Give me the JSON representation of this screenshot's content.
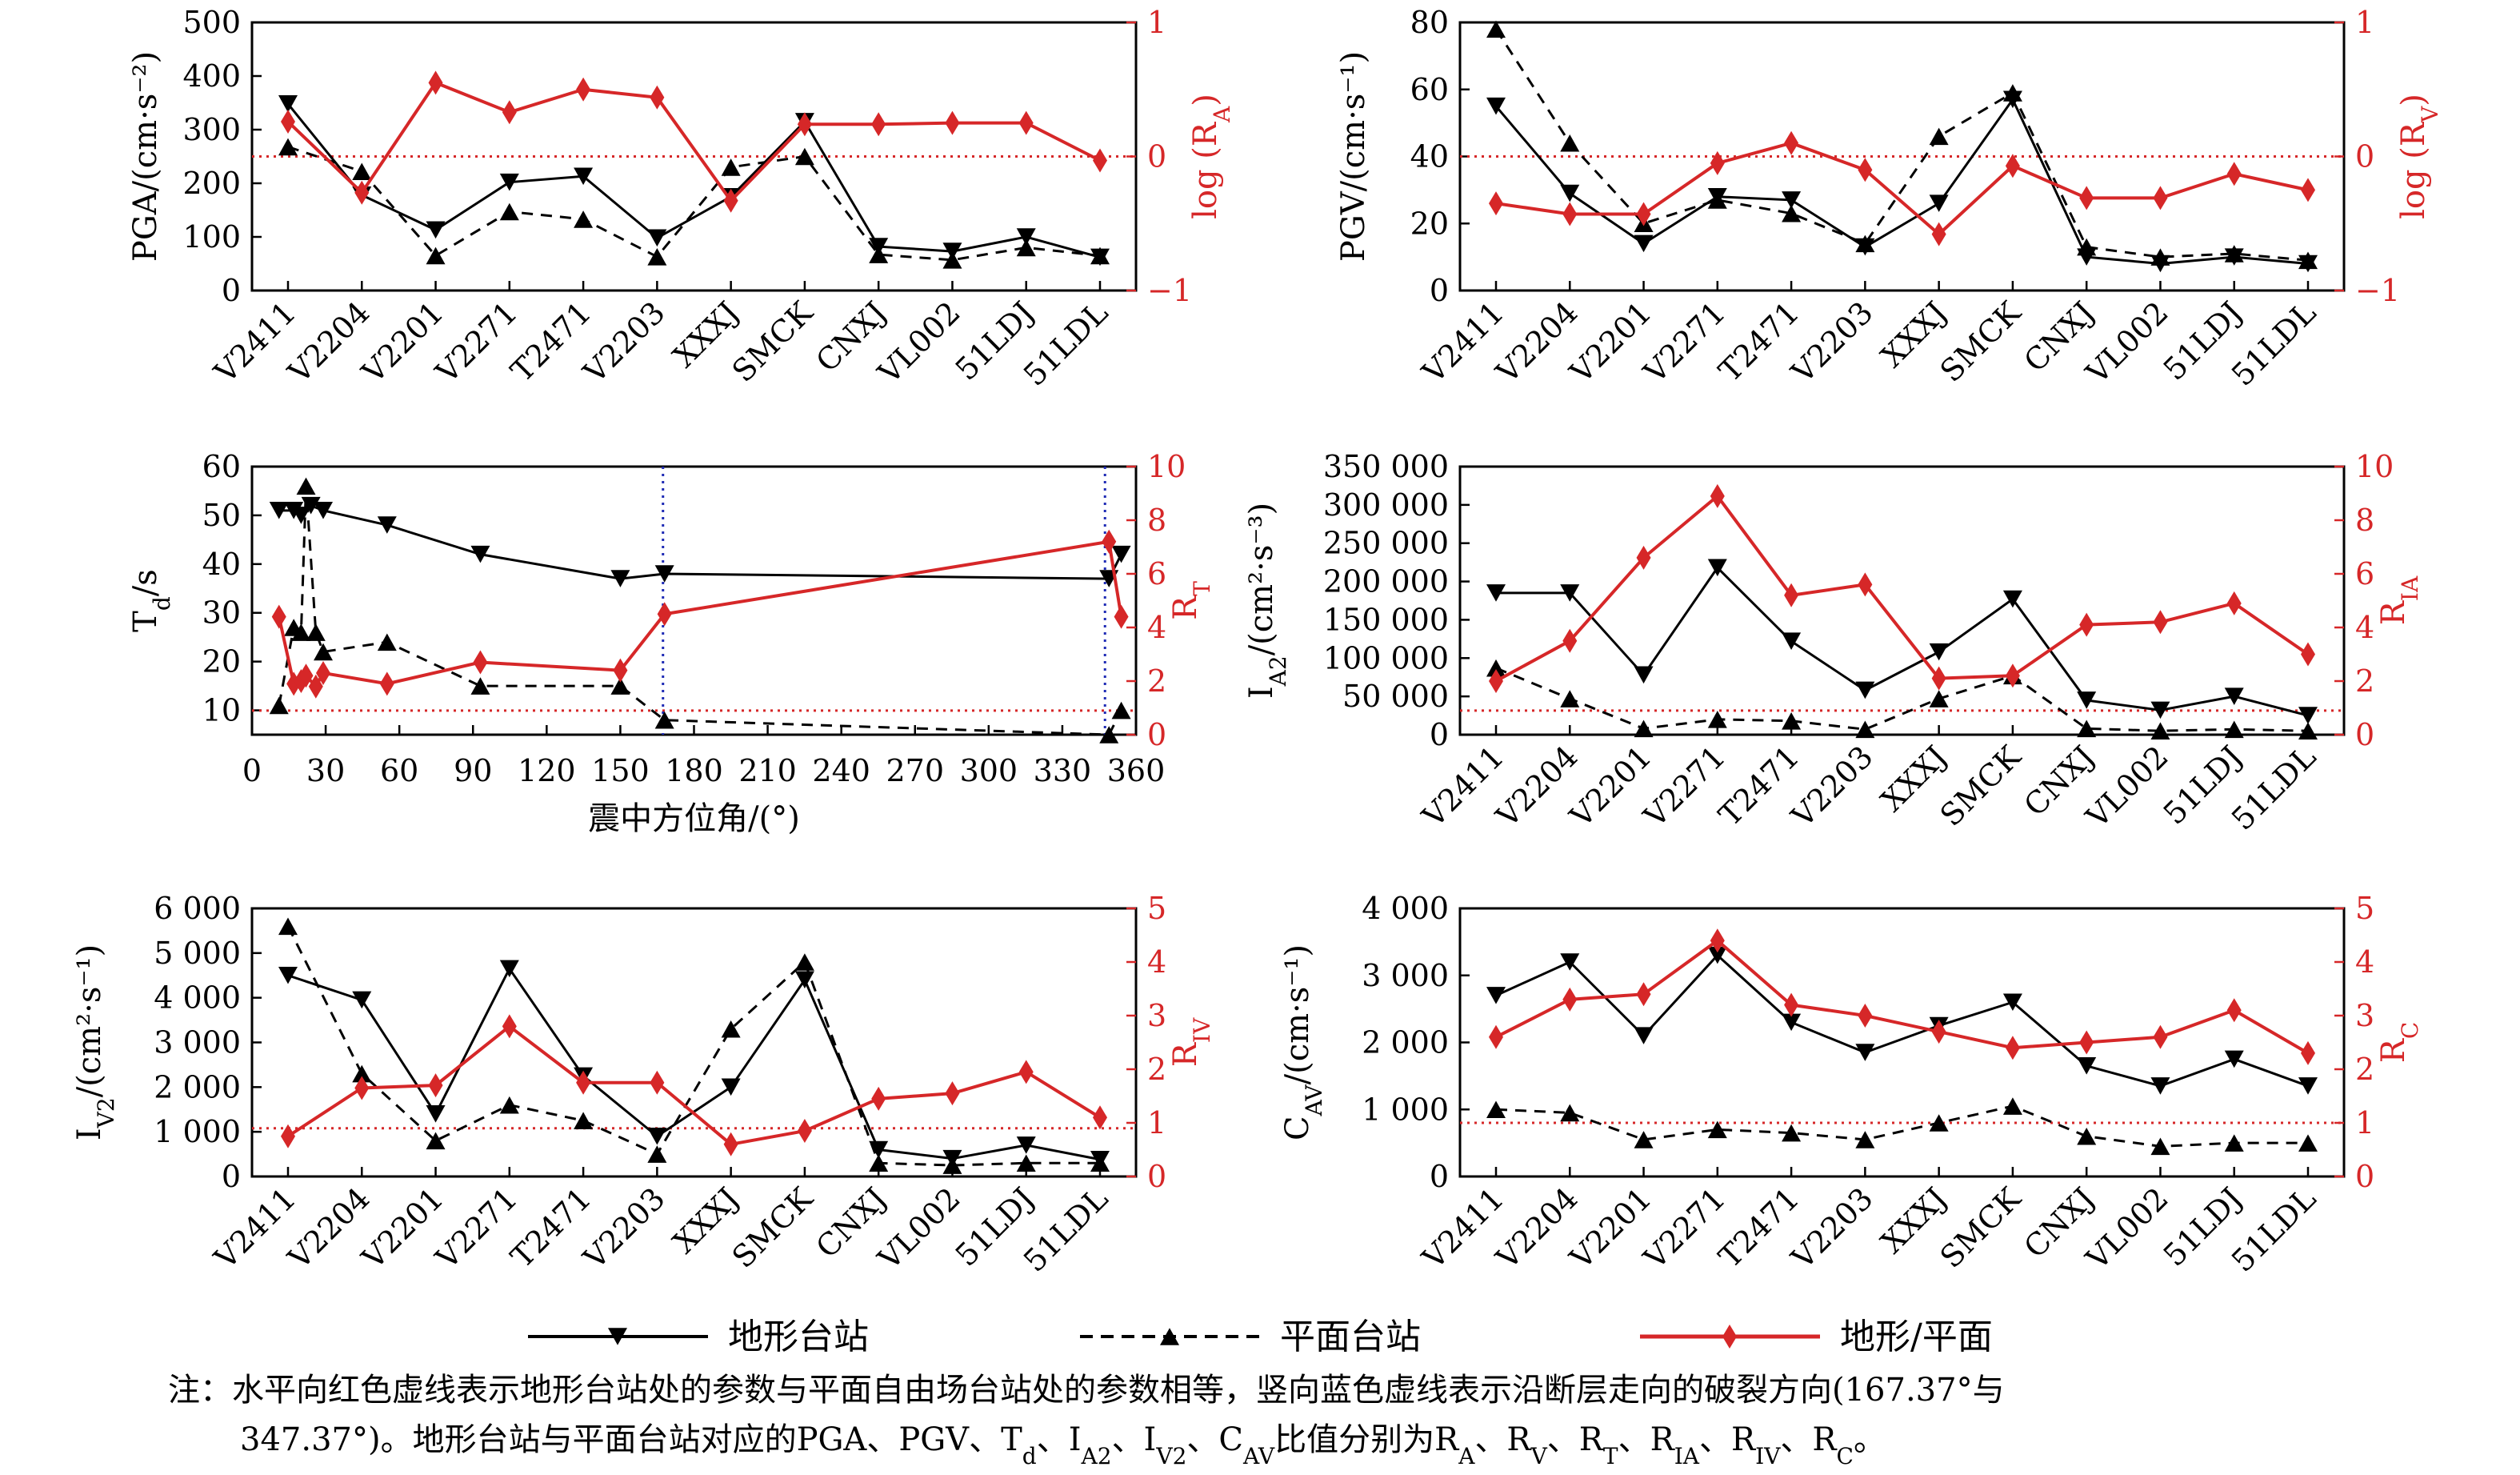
{
  "stations": [
    "V2411",
    "V2204",
    "V2201",
    "V2271",
    "T2471",
    "V2203",
    "XXXJ",
    "SMCK",
    "CNXJ",
    "VL002",
    "51LDJ",
    "51LDL"
  ],
  "colors": {
    "terrain": "#000000",
    "flat": "#000000",
    "ratio": "#d62728",
    "ref_red": "#d62728",
    "ref_blue": "#1f2bb5"
  },
  "chart_data": [
    {
      "id": "pga",
      "type": "line",
      "ylabel": "PGA/(cm·s⁻²)",
      "ylim": [
        0,
        500
      ],
      "yticks": [
        "0",
        "100",
        "200",
        "300",
        "400",
        "500"
      ],
      "y2label": "log (R_A)",
      "y2lim": [
        -1,
        1
      ],
      "y2ticks": [
        "−1",
        "0",
        "1"
      ],
      "ref_y2": 0,
      "series": [
        {
          "name": "地形台站",
          "axis": "left",
          "values": [
            348,
            178,
            113,
            202,
            213,
            98,
            175,
            315,
            82,
            73,
            100,
            62
          ]
        },
        {
          "name": "平面台站",
          "axis": "left",
          "values": [
            268,
            222,
            65,
            147,
            133,
            63,
            230,
            250,
            67,
            57,
            80,
            65
          ]
        },
        {
          "name": "地形/平面",
          "axis": "right",
          "values": [
            0.26,
            -0.27,
            0.55,
            0.33,
            0.5,
            0.44,
            -0.33,
            0.24,
            0.24,
            0.25,
            0.25,
            -0.03
          ]
        }
      ]
    },
    {
      "id": "pgv",
      "type": "line",
      "ylabel": "PGV/(cm·s⁻¹)",
      "ylim": [
        0,
        80
      ],
      "yticks": [
        "0",
        "20",
        "40",
        "60",
        "80"
      ],
      "y2label": "log (R_V)",
      "y2lim": [
        -1,
        1
      ],
      "y2ticks": [
        "−1",
        "0",
        "1"
      ],
      "ref_y2": 0,
      "series": [
        {
          "name": "地形台站",
          "axis": "left",
          "values": [
            55,
            29,
            14,
            28,
            27,
            13,
            26,
            57,
            10,
            8,
            10,
            8
          ]
        },
        {
          "name": "平面台站",
          "axis": "left",
          "values": [
            78,
            44,
            20,
            27,
            23,
            14,
            46,
            59,
            13,
            10,
            11,
            9
          ]
        },
        {
          "name": "地形/平面",
          "axis": "right",
          "values": [
            -0.35,
            -0.43,
            -0.43,
            -0.05,
            0.1,
            -0.1,
            -0.58,
            -0.07,
            -0.31,
            -0.31,
            -0.13,
            -0.25
          ]
        }
      ]
    },
    {
      "id": "td",
      "type": "line",
      "xlabel": "震中方位角/(°)",
      "xlim": [
        0,
        360
      ],
      "xticks": [
        "0",
        "30",
        "60",
        "90",
        "120",
        "150",
        "180",
        "210",
        "240",
        "270",
        "300",
        "330",
        "360"
      ],
      "ylabel": "T_d/s",
      "ylim": [
        5,
        60
      ],
      "yticks": [
        "10",
        "20",
        "30",
        "40",
        "50",
        "60"
      ],
      "y2label": "R_T",
      "y2lim": [
        0,
        10
      ],
      "y2ticks": [
        "0",
        "2",
        "4",
        "6",
        "8",
        "10"
      ],
      "ref_y2": 0.9,
      "ref_x": [
        167.37,
        347.37
      ],
      "series": [
        {
          "name": "地形台站",
          "axis": "left",
          "x": [
            11,
            17,
            20,
            24,
            29,
            55,
            93,
            150,
            168,
            349,
            354
          ],
          "values": [
            51,
            51,
            50,
            52,
            51,
            48,
            42,
            37,
            38,
            37,
            42
          ]
        },
        {
          "name": "平面台站",
          "axis": "left",
          "x": [
            11,
            17,
            20,
            22,
            26,
            29,
            55,
            93,
            150,
            168,
            349,
            354
          ],
          "values": [
            11,
            27,
            26,
            56,
            26,
            22,
            24,
            15,
            15,
            8,
            5,
            10
          ]
        },
        {
          "name": "地形/平面",
          "axis": "right",
          "x": [
            11,
            17,
            20,
            22,
            26,
            29,
            55,
            93,
            150,
            168,
            349,
            354
          ],
          "values": [
            4.4,
            1.9,
            2.0,
            2.2,
            1.8,
            2.3,
            1.9,
            2.7,
            2.4,
            4.5,
            7.2,
            4.4
          ]
        }
      ]
    },
    {
      "id": "ia",
      "type": "line",
      "ylabel": "I_A2/(cm²·s⁻³)",
      "ylim": [
        0,
        350000
      ],
      "yticks": [
        "0",
        "50 000",
        "100 000",
        "150 000",
        "200 000",
        "250 000",
        "300 000",
        "350 000"
      ],
      "y2label": "R_IA",
      "y2lim": [
        0,
        10
      ],
      "y2ticks": [
        "0",
        "2",
        "4",
        "6",
        "8",
        "10"
      ],
      "ref_y2": 0.9,
      "series": [
        {
          "name": "地形台站",
          "axis": "left",
          "values": [
            185000,
            185000,
            78000,
            218000,
            122000,
            58000,
            108000,
            177000,
            45000,
            32000,
            50000,
            25000
          ]
        },
        {
          "name": "平面台站",
          "axis": "left",
          "values": [
            87000,
            47000,
            8000,
            20000,
            18000,
            7000,
            47000,
            77000,
            8000,
            5000,
            7000,
            5000
          ]
        },
        {
          "name": "地形/平面",
          "axis": "right",
          "values": [
            2.0,
            3.5,
            6.6,
            8.9,
            5.2,
            5.6,
            2.1,
            2.2,
            4.1,
            4.2,
            4.9,
            3.0
          ]
        }
      ]
    },
    {
      "id": "iv",
      "type": "line",
      "ylabel": "I_V2/(cm²·s⁻¹)",
      "ylim": [
        0,
        6000
      ],
      "yticks": [
        "0",
        "1 000",
        "2 000",
        "3 000",
        "4 000",
        "5 000",
        "6 000"
      ],
      "y2label": "R_IV",
      "y2lim": [
        0,
        5
      ],
      "y2ticks": [
        "0",
        "1",
        "2",
        "3",
        "4",
        "5"
      ],
      "ref_y2": 0.9,
      "series": [
        {
          "name": "地形台站",
          "axis": "left",
          "values": [
            4500,
            3950,
            1400,
            4650,
            2250,
            900,
            2000,
            4400,
            600,
            400,
            700,
            380
          ]
        },
        {
          "name": "平面台站",
          "axis": "left",
          "values": [
            5600,
            2300,
            800,
            1600,
            1250,
            500,
            3300,
            4800,
            300,
            250,
            300,
            300
          ]
        },
        {
          "name": "地形/平面",
          "axis": "right",
          "values": [
            0.75,
            1.65,
            1.7,
            2.8,
            1.75,
            1.75,
            0.6,
            0.85,
            1.45,
            1.55,
            1.95,
            1.1
          ]
        }
      ]
    },
    {
      "id": "cav",
      "type": "line",
      "ylabel": "C_AV/(cm·s⁻¹)",
      "ylim": [
        0,
        4000
      ],
      "yticks": [
        "0",
        "1 000",
        "2 000",
        "3 000",
        "4 000"
      ],
      "y2label": "R_C",
      "y2lim": [
        0,
        5
      ],
      "y2ticks": [
        "0",
        "1",
        "2",
        "3",
        "4",
        "5"
      ],
      "ref_y2": 1.0,
      "series": [
        {
          "name": "地形台站",
          "axis": "left",
          "values": [
            2700,
            3200,
            2100,
            3300,
            2300,
            1850,
            2250,
            2600,
            1650,
            1350,
            1750,
            1350
          ]
        },
        {
          "name": "平面台站",
          "axis": "left",
          "values": [
            1000,
            950,
            550,
            700,
            650,
            550,
            800,
            1050,
            600,
            450,
            500,
            500
          ]
        },
        {
          "name": "地形/平面",
          "axis": "right",
          "values": [
            2.6,
            3.3,
            3.4,
            4.4,
            3.2,
            3.0,
            2.7,
            2.4,
            2.5,
            2.6,
            3.1,
            2.3
          ]
        }
      ]
    }
  ],
  "legend": {
    "terrain": "地形台站",
    "flat": "平面台站",
    "ratio": "地形/平面"
  },
  "note": {
    "line1": "注：水平向红色虚线表示地形台站处的参数与平面自由场台站处的参数相等，竖向蓝色虚线表示沿断层走向的破裂方向(167.37°与",
    "line2": "347.37°)。地形台站与平面台站对应的PGA、PGV、T_d、I_A2、I_V2、C_AV比值分别为R_A、R_V、R_T、R_IA、R_IV、R_C。"
  }
}
